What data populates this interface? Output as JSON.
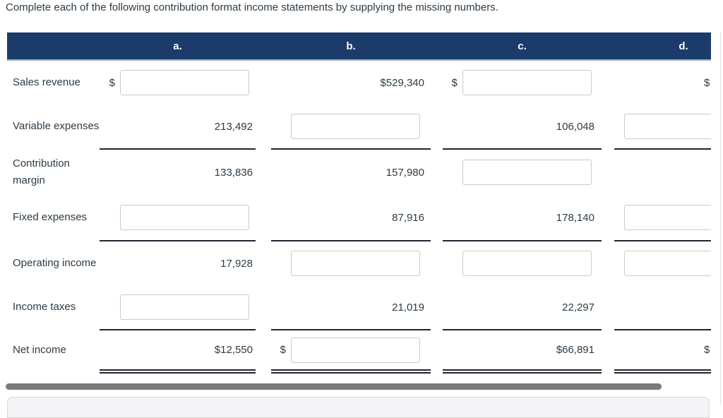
{
  "instruction": "Complete each of the following contribution format income statements by supplying the missing numbers.",
  "currency_symbol": "$",
  "columns": {
    "a": "a.",
    "b": "b.",
    "c": "c.",
    "d": "d."
  },
  "rows": {
    "sales_revenue": {
      "label": "Sales revenue",
      "b": "$529,340"
    },
    "variable_expenses": {
      "label": "Variable expenses",
      "a": "213,492",
      "c": "106,048"
    },
    "contribution_margin": {
      "label": "Contribution margin",
      "a": "133,836",
      "b": "157,980"
    },
    "fixed_expenses": {
      "label": "Fixed expenses",
      "b": "87,916",
      "c": "178,140"
    },
    "operating_income": {
      "label": "Operating income",
      "a": "17,928"
    },
    "income_taxes": {
      "label": "Income taxes",
      "b": "21,019",
      "c": "22,297"
    },
    "net_income": {
      "label": "Net income",
      "a": "$12,550",
      "c": "$66,891"
    }
  }
}
